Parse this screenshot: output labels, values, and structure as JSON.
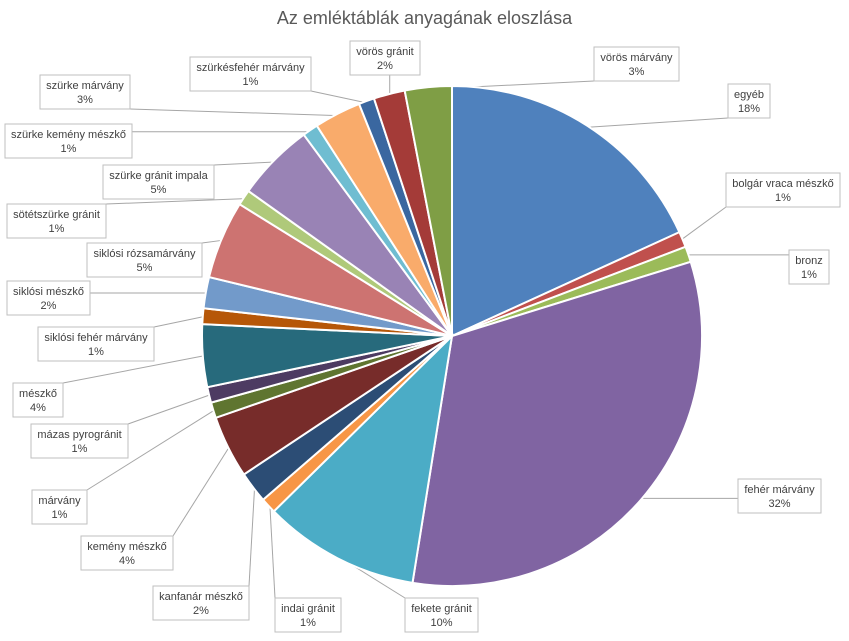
{
  "chart_data": {
    "type": "pie",
    "title": "Az emléktáblák anyagának eloszlása",
    "slices": [
      {
        "name": "egyéb",
        "value": 18,
        "label": "18%",
        "color": "#4f81bd"
      },
      {
        "name": "bolgár vraca mészkő",
        "value": 1,
        "label": "1%",
        "color": "#c0504d"
      },
      {
        "name": "bronz",
        "value": 1,
        "label": "1%",
        "color": "#9bbb59"
      },
      {
        "name": "fehér márvány",
        "value": 32,
        "label": "32%",
        "color": "#8064a2"
      },
      {
        "name": "fekete gránit",
        "value": 10,
        "label": "10%",
        "color": "#4bacc6"
      },
      {
        "name": "indai gránit",
        "value": 1,
        "label": "1%",
        "color": "#f79646"
      },
      {
        "name": "kanfanár mészkő",
        "value": 2,
        "label": "2%",
        "color": "#2c4d75"
      },
      {
        "name": "kemény mészkő",
        "value": 4,
        "label": "4%",
        "color": "#772c2a"
      },
      {
        "name": "márvány",
        "value": 1,
        "label": "1%",
        "color": "#5f7530"
      },
      {
        "name": "mázas pyrogránit",
        "value": 1,
        "label": "1%",
        "color": "#4d3b62"
      },
      {
        "name": "mészkő",
        "value": 4,
        "label": "4%",
        "color": "#276a7c"
      },
      {
        "name": "siklósi fehér márvány",
        "value": 1,
        "label": "1%",
        "color": "#b65708"
      },
      {
        "name": "siklósi mészkő",
        "value": 2,
        "label": "2%",
        "color": "#729aca"
      },
      {
        "name": "siklósi rózsamárvány",
        "value": 5,
        "label": "5%",
        "color": "#cd7371"
      },
      {
        "name": "sötétszürke gránit",
        "value": 1,
        "label": "1%",
        "color": "#afc97a"
      },
      {
        "name": "szürke gránit impala",
        "value": 5,
        "label": "5%",
        "color": "#9983b5"
      },
      {
        "name": "szürke kemény mészkő",
        "value": 1,
        "label": "1%",
        "color": "#6fbdd1"
      },
      {
        "name": "szürke márvány",
        "value": 3,
        "label": "3%",
        "color": "#f9ab6b"
      },
      {
        "name": "szürkésfehér márvány",
        "value": 1,
        "label": "1%",
        "color": "#3a67a0"
      },
      {
        "name": "vörös gránit",
        "value": 2,
        "label": "2%",
        "color": "#a43b38"
      },
      {
        "name": "vörös márvány",
        "value": 3,
        "label": "3%",
        "color": "#7f9e45"
      }
    ]
  }
}
